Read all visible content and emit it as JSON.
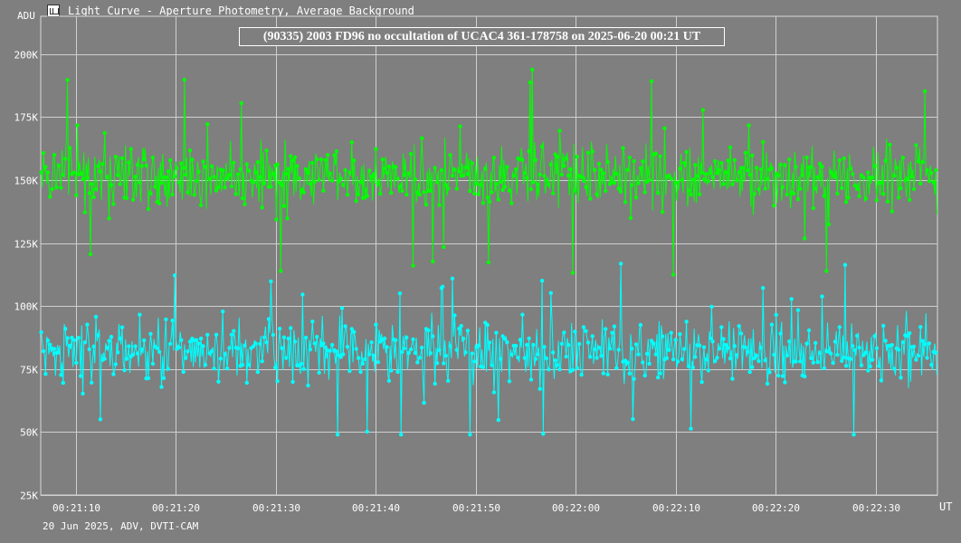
{
  "window": {
    "title": "Light Curve - Aperture Photometry, Average Background",
    "icon": "light-curve-app-icon"
  },
  "footer": {
    "text": "20 Jun 2025, ADV, DVTI-CAM"
  },
  "chart_data": {
    "type": "line",
    "title": "(90335) 2003 FD96 no occultation of UCAC4 361-178758 on 2025-06-20  00:21 UT",
    "ylabel": "ADU",
    "xlabel": "UT",
    "ylim": [
      25000,
      215000
    ],
    "xlim": [
      "00:21:06.5",
      "00:22:36.2"
    ],
    "yticks": [
      "25K",
      "50K",
      "75K",
      "100K",
      "125K",
      "150K",
      "175K",
      "200K"
    ],
    "xticks": [
      "00:21:10",
      "00:21:20",
      "00:21:30",
      "00:21:40",
      "00:21:50",
      "00:22:00",
      "00:22:10",
      "00:22:20",
      "00:22:30"
    ],
    "grid": true,
    "series": [
      {
        "color": "#00ff00",
        "mean": 152000,
        "spread": 10500,
        "min": 112000,
        "max": 204000
      },
      {
        "color": "#00ffff",
        "mean": 82000,
        "spread": 10000,
        "min": 49000,
        "max": 126000
      }
    ]
  }
}
